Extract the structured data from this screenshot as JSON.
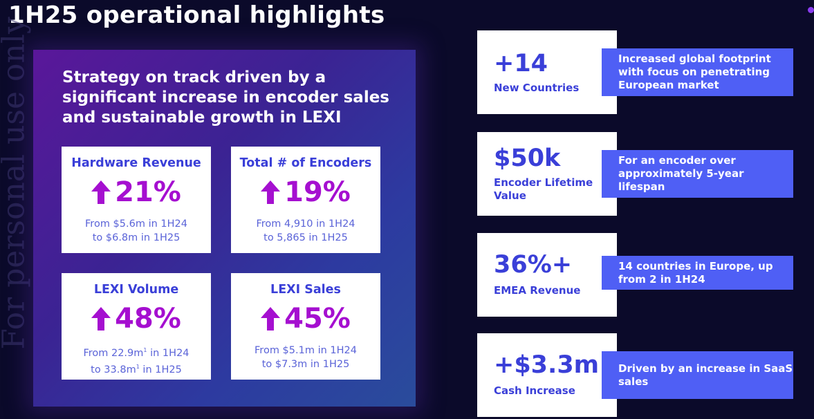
{
  "title": "1H25 operational highlights",
  "watermark": "For personal use only",
  "panel": {
    "heading": "Strategy on track driven by a significant increase in encoder sales and sustainable growth in LEXI"
  },
  "metrics": [
    {
      "label": "Hardware Revenue",
      "value": "21%",
      "line1": "From $5.6m in 1H24",
      "line2": "to $6.8m in 1H25"
    },
    {
      "label": "Total # of Encoders",
      "value": "19%",
      "line1": "From 4,910 in 1H24",
      "line2": "to 5,865 in 1H25"
    },
    {
      "label": "LEXI Volume",
      "value": "48%",
      "line1_pre": "From 22.9m",
      "line1_post": " in 1H24",
      "line2_pre": "to 33.8m",
      "line2_post": " in 1H25",
      "footnote": "1"
    },
    {
      "label": "LEXI Sales",
      "value": "45%",
      "line1": "From $5.1m in 1H24",
      "line2": "to $7.3m in 1H25"
    }
  ],
  "stats": [
    {
      "value": "+14",
      "label": "New Countries",
      "callout": "Increased global footprint with focus on penetrating European market"
    },
    {
      "value": "$50k",
      "label": "Encoder Lifetime Value",
      "callout": "For an encoder over approximately 5-year lifespan"
    },
    {
      "value": "36%+",
      "label": "EMEA Revenue",
      "callout": "14 countries in Europe, up from 2 in 1H24"
    },
    {
      "value": "+$3.3m",
      "label": "Cash Increase",
      "callout": "Driven by an increase in SaaS sales"
    }
  ],
  "colors": {
    "background": "#0b0a2a",
    "accent_blue": "#3a3fd8",
    "accent_purple": "#a50fd0",
    "callout_blue": "#4f5ff5"
  }
}
